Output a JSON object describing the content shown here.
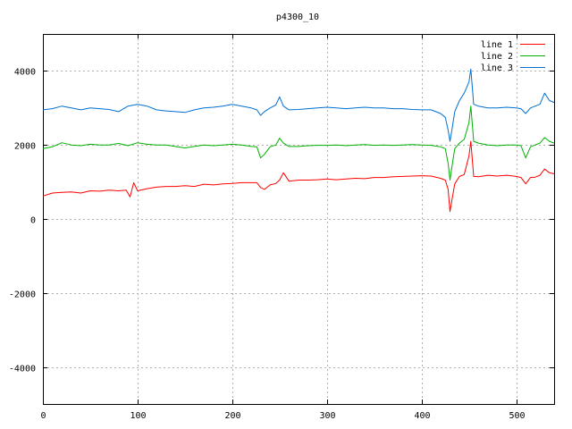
{
  "chart_data": {
    "type": "line",
    "title": "p4300_10",
    "xlabel": "",
    "ylabel": "",
    "xlim": [
      0,
      540
    ],
    "ylim": [
      -5000,
      5000
    ],
    "x_ticks": [
      0,
      100,
      200,
      300,
      400,
      500
    ],
    "y_ticks": [
      -4000,
      -2000,
      0,
      2000,
      4000
    ],
    "grid": true,
    "legend_position": "top-right",
    "series": [
      {
        "name": "line 1",
        "color": "#ff0000",
        "x": [
          0,
          10,
          20,
          30,
          40,
          50,
          60,
          70,
          80,
          88,
          92,
          96,
          100,
          110,
          120,
          130,
          140,
          150,
          160,
          170,
          180,
          190,
          200,
          210,
          220,
          226,
          230,
          234,
          240,
          246,
          250,
          254,
          260,
          270,
          280,
          290,
          300,
          310,
          320,
          330,
          340,
          350,
          360,
          370,
          380,
          390,
          400,
          410,
          420,
          425,
          428,
          430,
          432,
          435,
          440,
          445,
          450,
          452,
          455,
          460,
          470,
          480,
          490,
          500,
          505,
          510,
          515,
          520,
          525,
          530,
          535,
          540
        ],
        "y": [
          620,
          700,
          720,
          730,
          700,
          760,
          750,
          780,
          760,
          780,
          600,
          980,
          760,
          820,
          860,
          880,
          880,
          900,
          880,
          940,
          920,
          950,
          960,
          980,
          980,
          980,
          850,
          800,
          920,
          960,
          1050,
          1250,
          1020,
          1050,
          1050,
          1060,
          1080,
          1060,
          1080,
          1100,
          1090,
          1120,
          1120,
          1140,
          1150,
          1160,
          1170,
          1160,
          1100,
          1050,
          800,
          200,
          500,
          950,
          1150,
          1200,
          1700,
          2100,
          1150,
          1140,
          1180,
          1160,
          1180,
          1150,
          1120,
          950,
          1120,
          1130,
          1180,
          1350,
          1250,
          1220
        ]
      },
      {
        "name": "line 2",
        "color": "#00b000",
        "x": [
          0,
          10,
          20,
          30,
          40,
          50,
          60,
          70,
          80,
          90,
          100,
          110,
          120,
          130,
          140,
          150,
          160,
          170,
          180,
          190,
          200,
          210,
          220,
          226,
          230,
          234,
          240,
          246,
          250,
          254,
          260,
          270,
          280,
          290,
          300,
          310,
          320,
          330,
          340,
          350,
          360,
          370,
          380,
          390,
          400,
          410,
          420,
          425,
          428,
          430,
          432,
          435,
          440,
          445,
          450,
          452,
          455,
          460,
          470,
          480,
          490,
          500,
          505,
          510,
          515,
          520,
          525,
          530,
          535,
          540
        ],
        "y": [
          1900,
          1950,
          2060,
          2000,
          1980,
          2020,
          2000,
          2000,
          2040,
          1980,
          2060,
          2020,
          2000,
          2000,
          1960,
          1920,
          1960,
          2000,
          1980,
          2000,
          2020,
          2000,
          1960,
          1950,
          1650,
          1750,
          1950,
          2000,
          2180,
          2050,
          1960,
          1960,
          1980,
          1990,
          1990,
          2000,
          1980,
          2000,
          2010,
          1990,
          2000,
          1990,
          2000,
          2010,
          2000,
          1990,
          1950,
          1900,
          1500,
          1050,
          1400,
          1900,
          2050,
          2150,
          2600,
          3050,
          2100,
          2050,
          2000,
          1980,
          2000,
          2000,
          1980,
          1650,
          1950,
          2000,
          2050,
          2200,
          2100,
          2050
        ]
      },
      {
        "name": "line 3",
        "color": "#0070d0",
        "x": [
          0,
          10,
          20,
          30,
          40,
          50,
          60,
          70,
          80,
          90,
          100,
          110,
          120,
          130,
          140,
          150,
          160,
          170,
          180,
          190,
          200,
          210,
          220,
          226,
          230,
          234,
          240,
          246,
          250,
          254,
          260,
          270,
          280,
          290,
          300,
          310,
          320,
          330,
          340,
          350,
          360,
          370,
          380,
          390,
          400,
          410,
          420,
          425,
          428,
          430,
          432,
          435,
          440,
          445,
          450,
          452,
          455,
          460,
          470,
          480,
          490,
          500,
          505,
          510,
          515,
          520,
          525,
          530,
          535,
          540
        ],
        "y": [
          2950,
          2980,
          3050,
          3000,
          2950,
          3000,
          2980,
          2960,
          2900,
          3050,
          3100,
          3050,
          2950,
          2920,
          2900,
          2880,
          2950,
          3000,
          3020,
          3050,
          3100,
          3050,
          3000,
          2950,
          2800,
          2900,
          3000,
          3080,
          3300,
          3050,
          2950,
          2960,
          2980,
          3000,
          3020,
          3000,
          2980,
          3000,
          3020,
          3000,
          3000,
          2980,
          2980,
          2960,
          2950,
          2950,
          2850,
          2750,
          2400,
          2100,
          2400,
          2900,
          3200,
          3400,
          3700,
          4050,
          3100,
          3050,
          3000,
          3000,
          3020,
          3000,
          2980,
          2850,
          3000,
          3050,
          3100,
          3400,
          3200,
          3150
        ]
      }
    ]
  }
}
